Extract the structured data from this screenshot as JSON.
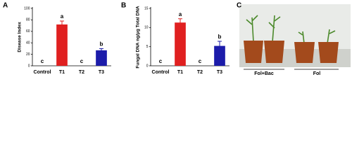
{
  "chart_data": [
    {
      "type": "bar",
      "label": "A",
      "ylabel": "Disease Index",
      "categories": [
        "Control",
        "T1",
        "T2",
        "T3"
      ],
      "values": [
        0,
        72,
        0,
        27
      ],
      "errors": [
        0,
        6,
        0,
        3
      ],
      "annotations": [
        "c",
        "a",
        "c",
        "b"
      ],
      "colors": [
        "#e02020",
        "#e02020",
        "#1c1caa",
        "#1c1caa"
      ],
      "ylim": [
        0,
        100
      ],
      "yticks": [
        0,
        20,
        40,
        60,
        80,
        100
      ]
    },
    {
      "type": "bar",
      "label": "B",
      "ylabel": "Fungal DNA ng/μg Total DNA",
      "categories": [
        "Control",
        "T1",
        "T2",
        "T3"
      ],
      "values": [
        0,
        11.3,
        0,
        5.2
      ],
      "errors": [
        0,
        1.0,
        0,
        1.2
      ],
      "annotations": [
        "c",
        "a",
        "c",
        "b"
      ],
      "colors": [
        "#e02020",
        "#e02020",
        "#1c1caa",
        "#1c1caa"
      ],
      "ylim": [
        0,
        15
      ],
      "yticks": [
        0,
        5,
        10,
        15
      ]
    }
  ],
  "photo": {
    "label": "C",
    "groups": [
      "Fol+Bac",
      "Fol"
    ]
  }
}
